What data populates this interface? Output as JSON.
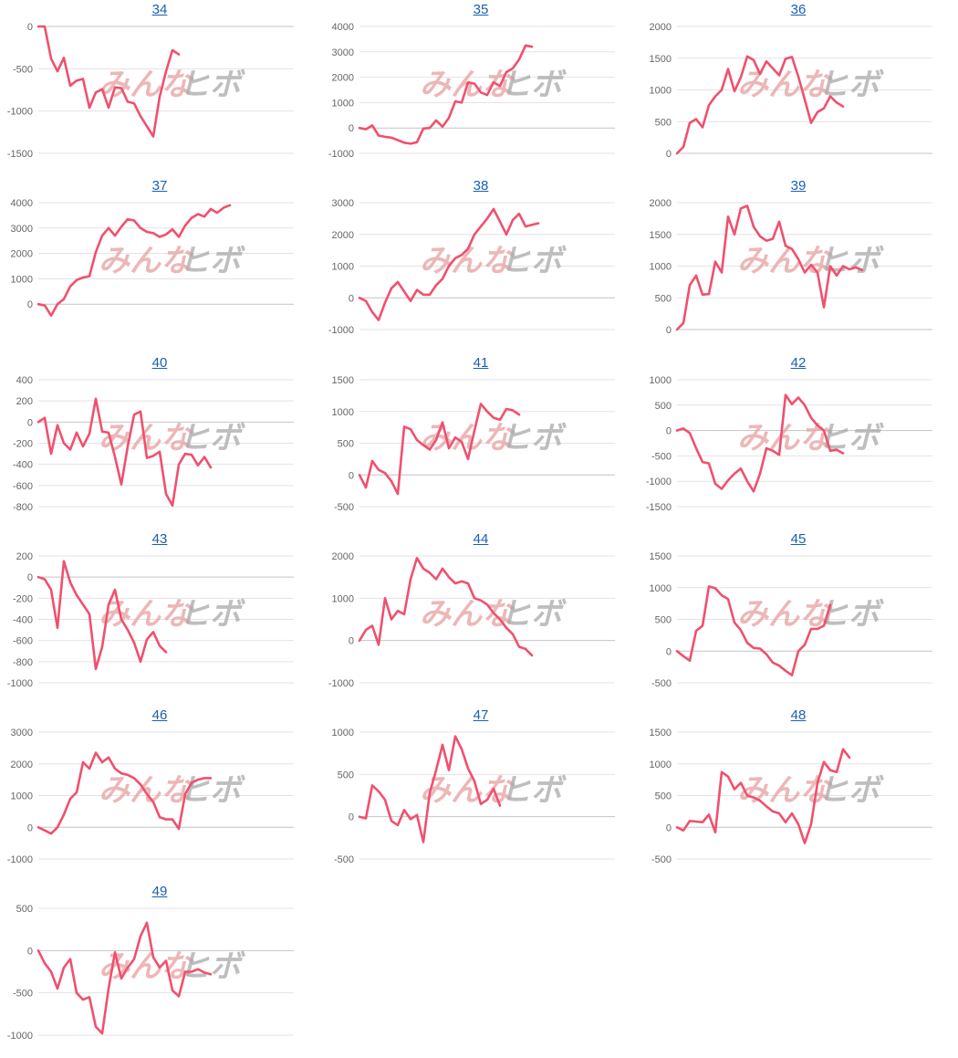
{
  "style": {
    "line_color": "#f0506e",
    "grid_color": "#e3e3e3",
    "title_color": "#1a5fb4"
  },
  "watermark": {
    "part1": "みんな",
    "part2": "ヒボ"
  },
  "chart_data": [
    {
      "type": "line",
      "title": "34",
      "ylim": [
        -1500,
        0
      ],
      "yticks": [
        0,
        -500,
        -1000,
        -1500
      ],
      "values": [
        0,
        0,
        -380,
        -530,
        -370,
        -700,
        -640,
        -620,
        -960,
        -780,
        -740,
        -960,
        -720,
        -730,
        -890,
        -910,
        -1060,
        -1180,
        -1300,
        -830,
        -530,
        -280,
        -330
      ]
    },
    {
      "type": "line",
      "title": "35",
      "ylim": [
        -1000,
        4000
      ],
      "yticks": [
        4000,
        3000,
        2000,
        1000,
        0,
        -1000
      ],
      "values": [
        0,
        -50,
        100,
        -300,
        -350,
        -380,
        -480,
        -580,
        -620,
        -560,
        -20,
        0,
        300,
        50,
        400,
        1050,
        1000,
        1800,
        1750,
        1400,
        1300,
        1800,
        1650,
        2200,
        2350,
        2700,
        3250,
        3200
      ]
    },
    {
      "type": "line",
      "title": "36",
      "ylim": [
        0,
        2000
      ],
      "yticks": [
        2000,
        1500,
        1000,
        500,
        0
      ],
      "values": [
        0,
        100,
        480,
        540,
        410,
        760,
        900,
        1000,
        1330,
        980,
        1200,
        1530,
        1470,
        1250,
        1450,
        1340,
        1230,
        1490,
        1520,
        1210,
        850,
        480,
        650,
        710,
        900,
        800,
        740
      ]
    },
    {
      "type": "line",
      "title": "37",
      "ylim": [
        -1000,
        4000
      ],
      "yticks": [
        4000,
        3000,
        2000,
        1000,
        0
      ],
      "values": [
        0,
        -50,
        -450,
        0,
        200,
        700,
        950,
        1050,
        1100,
        2050,
        2700,
        3000,
        2700,
        3050,
        3350,
        3300,
        3000,
        2850,
        2800,
        2650,
        2750,
        2950,
        2650,
        3100,
        3400,
        3550,
        3450,
        3750,
        3600,
        3800,
        3900
      ]
    },
    {
      "type": "line",
      "title": "38",
      "ylim": [
        -1000,
        3000
      ],
      "yticks": [
        3000,
        2000,
        1000,
        0,
        -1000
      ],
      "values": [
        0,
        -100,
        -450,
        -700,
        -150,
        300,
        500,
        200,
        -100,
        250,
        100,
        100,
        400,
        600,
        1000,
        1250,
        1350,
        1550,
        2000,
        2250,
        2500,
        2800,
        2400,
        2000,
        2450,
        2650,
        2250,
        2300,
        2350
      ]
    },
    {
      "type": "line",
      "title": "39",
      "ylim": [
        0,
        2000
      ],
      "yticks": [
        2000,
        1500,
        1000,
        500,
        0
      ],
      "values": [
        0,
        100,
        700,
        850,
        550,
        560,
        1070,
        900,
        1780,
        1500,
        1910,
        1950,
        1620,
        1470,
        1400,
        1430,
        1700,
        1320,
        1270,
        1110,
        900,
        1020,
        900,
        350,
        1000,
        850,
        1000,
        950,
        980,
        940
      ]
    },
    {
      "type": "line",
      "title": "40",
      "ylim": [
        -800,
        400
      ],
      "yticks": [
        400,
        200,
        0,
        -200,
        -400,
        -600,
        -800
      ],
      "values": [
        0,
        40,
        -300,
        -30,
        -200,
        -260,
        -100,
        -230,
        -110,
        220,
        -90,
        -100,
        -330,
        -590,
        -230,
        70,
        100,
        -340,
        -320,
        -280,
        -680,
        -790,
        -400,
        -300,
        -310,
        -410,
        -330,
        -430
      ]
    },
    {
      "type": "line",
      "title": "41",
      "ylim": [
        -500,
        1500
      ],
      "yticks": [
        1500,
        1000,
        500,
        0,
        -500
      ],
      "values": [
        0,
        -200,
        220,
        80,
        30,
        -100,
        -300,
        760,
        720,
        550,
        470,
        400,
        550,
        830,
        420,
        590,
        520,
        250,
        700,
        1120,
        1000,
        900,
        870,
        1040,
        1020,
        950
      ]
    },
    {
      "type": "line",
      "title": "42",
      "ylim": [
        -1500,
        1000
      ],
      "yticks": [
        1000,
        500,
        0,
        -500,
        -1000,
        -1500
      ],
      "values": [
        0,
        40,
        -50,
        -350,
        -620,
        -650,
        -1050,
        -1150,
        -980,
        -850,
        -750,
        -1000,
        -1200,
        -850,
        -350,
        -400,
        -480,
        700,
        520,
        650,
        500,
        250,
        100,
        0,
        -400,
        -380,
        -450
      ]
    },
    {
      "type": "line",
      "title": "43",
      "ylim": [
        -1000,
        200
      ],
      "yticks": [
        200,
        0,
        -200,
        -400,
        -600,
        -800,
        -1000
      ],
      "values": [
        0,
        -20,
        -120,
        -480,
        150,
        -50,
        -170,
        -260,
        -350,
        -870,
        -660,
        -260,
        -120,
        -400,
        -500,
        -620,
        -800,
        -590,
        -520,
        -650,
        -710
      ]
    },
    {
      "type": "line",
      "title": "44",
      "ylim": [
        -1000,
        2000
      ],
      "yticks": [
        2000,
        1000,
        0,
        -1000
      ],
      "values": [
        0,
        250,
        350,
        -100,
        1000,
        500,
        700,
        620,
        1450,
        1950,
        1700,
        1600,
        1450,
        1700,
        1500,
        1350,
        1400,
        1350,
        1000,
        950,
        850,
        650,
        500,
        300,
        150,
        -150,
        -200,
        -350
      ]
    },
    {
      "type": "line",
      "title": "45",
      "ylim": [
        -500,
        1500
      ],
      "yticks": [
        1500,
        1000,
        500,
        0,
        -500
      ],
      "values": [
        0,
        -80,
        -150,
        320,
        400,
        1020,
        990,
        880,
        820,
        450,
        330,
        130,
        50,
        40,
        -50,
        -180,
        -230,
        -310,
        -380,
        0,
        100,
        350,
        350,
        400,
        730
      ]
    },
    {
      "type": "line",
      "title": "46",
      "ylim": [
        -1000,
        3000
      ],
      "yticks": [
        3000,
        2000,
        1000,
        0,
        -1000
      ],
      "values": [
        0,
        -100,
        -200,
        0,
        400,
        900,
        1100,
        2050,
        1850,
        2350,
        2050,
        2200,
        1850,
        1700,
        1650,
        1550,
        1350,
        1050,
        800,
        320,
        250,
        250,
        -50,
        1050,
        1400,
        1500,
        1550,
        1550
      ]
    },
    {
      "type": "line",
      "title": "47",
      "ylim": [
        -500,
        1000
      ],
      "yticks": [
        1000,
        500,
        0,
        -500
      ],
      "values": [
        0,
        -20,
        370,
        300,
        200,
        -50,
        -100,
        80,
        -30,
        20,
        -300,
        280,
        550,
        850,
        550,
        950,
        800,
        570,
        420,
        150,
        200,
        330,
        130
      ]
    },
    {
      "type": "line",
      "title": "48",
      "ylim": [
        -500,
        1500
      ],
      "yticks": [
        1500,
        1000,
        500,
        0,
        -500
      ],
      "values": [
        0,
        -50,
        100,
        90,
        80,
        200,
        -80,
        870,
        800,
        600,
        700,
        500,
        470,
        420,
        330,
        250,
        220,
        80,
        220,
        50,
        -250,
        50,
        700,
        1030,
        900,
        870,
        1230,
        1100
      ]
    },
    {
      "type": "line",
      "title": "49",
      "ylim": [
        -1000,
        500
      ],
      "yticks": [
        500,
        0,
        -500,
        -1000
      ],
      "values": [
        0,
        -150,
        -250,
        -450,
        -200,
        -100,
        -500,
        -580,
        -550,
        -900,
        -980,
        -450,
        -20,
        -330,
        -200,
        -100,
        170,
        330,
        -80,
        -200,
        -120,
        -470,
        -540,
        -250,
        -250,
        -220,
        -260,
        -280
      ]
    }
  ]
}
